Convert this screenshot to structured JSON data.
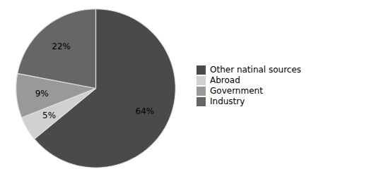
{
  "chart_data": {
    "type": "pie",
    "categories": [
      "Other natinal sources",
      "Abroad",
      "Government",
      "Industry"
    ],
    "values": [
      64,
      5,
      9,
      22
    ],
    "value_labels": [
      "64%",
      "5%",
      "9%",
      "22%"
    ],
    "colors": [
      "#4a4a4a",
      "#d0d0d0",
      "#999999",
      "#666666"
    ],
    "data_labels": true,
    "legend": "right"
  }
}
